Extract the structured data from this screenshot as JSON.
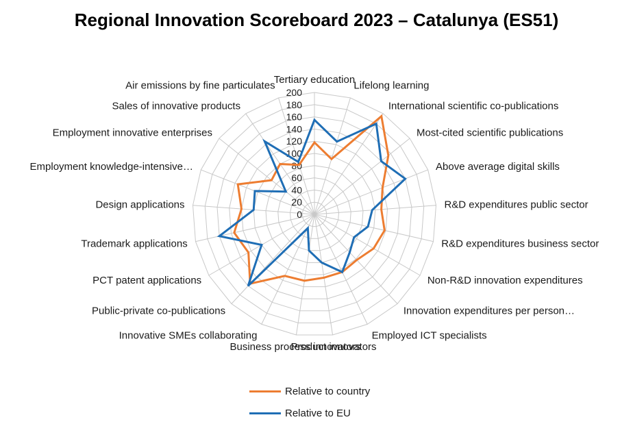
{
  "chart_data": {
    "type": "radar",
    "title": "Regional Innovation Scoreboard 2023 – Catalunya (ES51)",
    "categories": [
      "Tertiary education",
      "Lifelong learning",
      "International scientific co-publications",
      "Most-cited scientific publications",
      "Above average digital skills",
      "R&D expenditures public sector",
      "R&D expenditures business sector",
      "Non-R&D innovation expenditures",
      "Innovation expenditures per person…",
      "Employed ICT specialists",
      "Product innovators",
      "Business process innovators",
      "Innovative SMEs collaborating",
      "Public-private co-publications",
      "PCT patent applications",
      "Trademark applications",
      "Design applications",
      "Employment knowledge-intensive…",
      "Employment innovative enterprises",
      "Sales of innovative products",
      "Air emissions by fine particulates"
    ],
    "series": [
      {
        "name": "Relative to country",
        "color": "#ED7D31",
        "values": [
          118,
          95,
          195,
          155,
          120,
          110,
          118,
          112,
          102,
          105,
          105,
          110,
          112,
          155,
          125,
          135,
          120,
          135,
          90,
          100,
          85
        ]
      },
      {
        "name": "Relative to EU",
        "color": "#1F6EB5",
        "values": [
          155,
          125,
          180,
          140,
          160,
          95,
          90,
          75,
          85,
          105,
          80,
          60,
          25,
          160,
          100,
          160,
          100,
          105,
          60,
          145,
          90
        ]
      }
    ],
    "rlim": [
      0,
      200
    ],
    "ticks": [
      0,
      20,
      40,
      60,
      80,
      100,
      120,
      140,
      160,
      180,
      200
    ],
    "grid": true,
    "legend": "bottom"
  }
}
